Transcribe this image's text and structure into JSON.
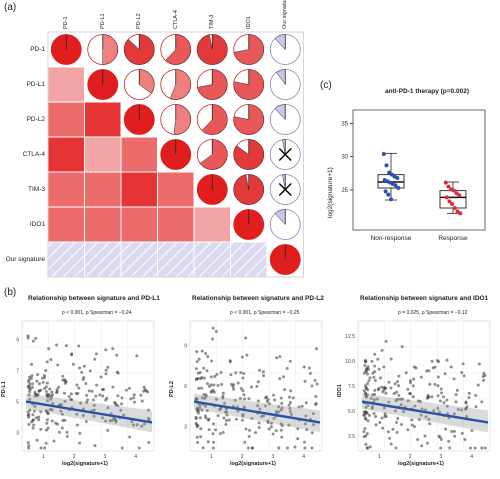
{
  "panels": {
    "a": "(a)",
    "b": "(b)",
    "c": "(c)"
  },
  "corr": {
    "labels": [
      "PD-1",
      "PD-L1",
      "PD-L2",
      "CTLA-4",
      "TIM-3",
      "IDO1",
      "Our signature"
    ],
    "colors": {
      "strong": "#e63434",
      "mid": "#ec6c6c",
      "weak": "#f3a5a5",
      "neg": "#d8d6ee"
    },
    "lower": [
      [],
      [
        "weak"
      ],
      [
        "mid",
        "strong"
      ],
      [
        "strong",
        "weak",
        "mid"
      ],
      [
        "mid",
        "mid",
        "strong",
        "mid"
      ],
      [
        "mid",
        "mid",
        "mid",
        "mid",
        "weak"
      ],
      [
        "neg",
        "neg",
        "neg",
        "neg",
        "neg",
        "neg"
      ]
    ],
    "upper_fill": [
      [
        0.5,
        0.87,
        0.62,
        0.97,
        0.72
      ],
      [
        0.35,
        0.56,
        0.72,
        0.78
      ],
      [
        0.52,
        0.62,
        0.78
      ],
      [
        0.65,
        0.85
      ],
      [
        0.97
      ]
    ],
    "signature_col": [
      0.12,
      0.1,
      0.12,
      0.03,
      0.03,
      0.12
    ],
    "signature_marks": [
      "neg",
      "neg",
      "neg",
      "x",
      "x",
      "neg"
    ],
    "diag": [
      1,
      1,
      1,
      1,
      1,
      1,
      1
    ]
  },
  "scatters": [
    {
      "title": "Relationship between signature and PD-L1",
      "stat": "p < 0.001, ρ Spearman = −0.24",
      "xlabel": "log2(signature+1)",
      "ylabel": "PD-L1",
      "yticks": [
        "9",
        "7",
        "5",
        "3"
      ],
      "xticks": [
        "1",
        "2",
        "3",
        "4"
      ]
    },
    {
      "title": "Relationship between signature and PD-L2",
      "stat": "p < 0.001, ρ Spearman = −0.25",
      "xlabel": "log2(signature+1)",
      "ylabel": "PD-L2",
      "yticks": [
        "9",
        "6",
        "3"
      ],
      "xticks": [
        "1",
        "2",
        "3",
        "4"
      ]
    },
    {
      "title": "Relationship between signature and IDO1",
      "stat": "p = 0.025, ρ Spearman = −0.12",
      "xlabel": "log2(signature+1)",
      "ylabel": "IDO1",
      "yticks": [
        "12.5",
        "10.0",
        "7.5",
        "5.0",
        "2.5"
      ],
      "xticks": [
        "1",
        "2",
        "3",
        "4"
      ]
    }
  ],
  "boxplot": {
    "title": "anti-PD-1 therapy (p=0.002)",
    "ylabel": "log2(signature+1)",
    "yticks": [
      "35",
      "30",
      "25"
    ],
    "groups": [
      {
        "name": "Non-response",
        "color": "#2f4fa8",
        "q1": 25.3,
        "median": 26.2,
        "q3": 27.3,
        "lo": 23.5,
        "hi": 30.5,
        "points": [
          30.4,
          28.7,
          27.6,
          27.3,
          27.0,
          26.8,
          26.5,
          26.3,
          26.1,
          25.9,
          25.7,
          25.3,
          24.8,
          24.3,
          23.6
        ]
      },
      {
        "name": "Response",
        "color": "#d8303a",
        "q1": 22.3,
        "median": 23.9,
        "q3": 24.9,
        "lo": 21.5,
        "hi": 26.2,
        "points": [
          26.1,
          25.5,
          25.1,
          24.9,
          24.5,
          24.2,
          23.9,
          23.3,
          22.9,
          22.3,
          21.8,
          21.5
        ]
      }
    ],
    "ylim": [
      19,
      37
    ]
  }
}
